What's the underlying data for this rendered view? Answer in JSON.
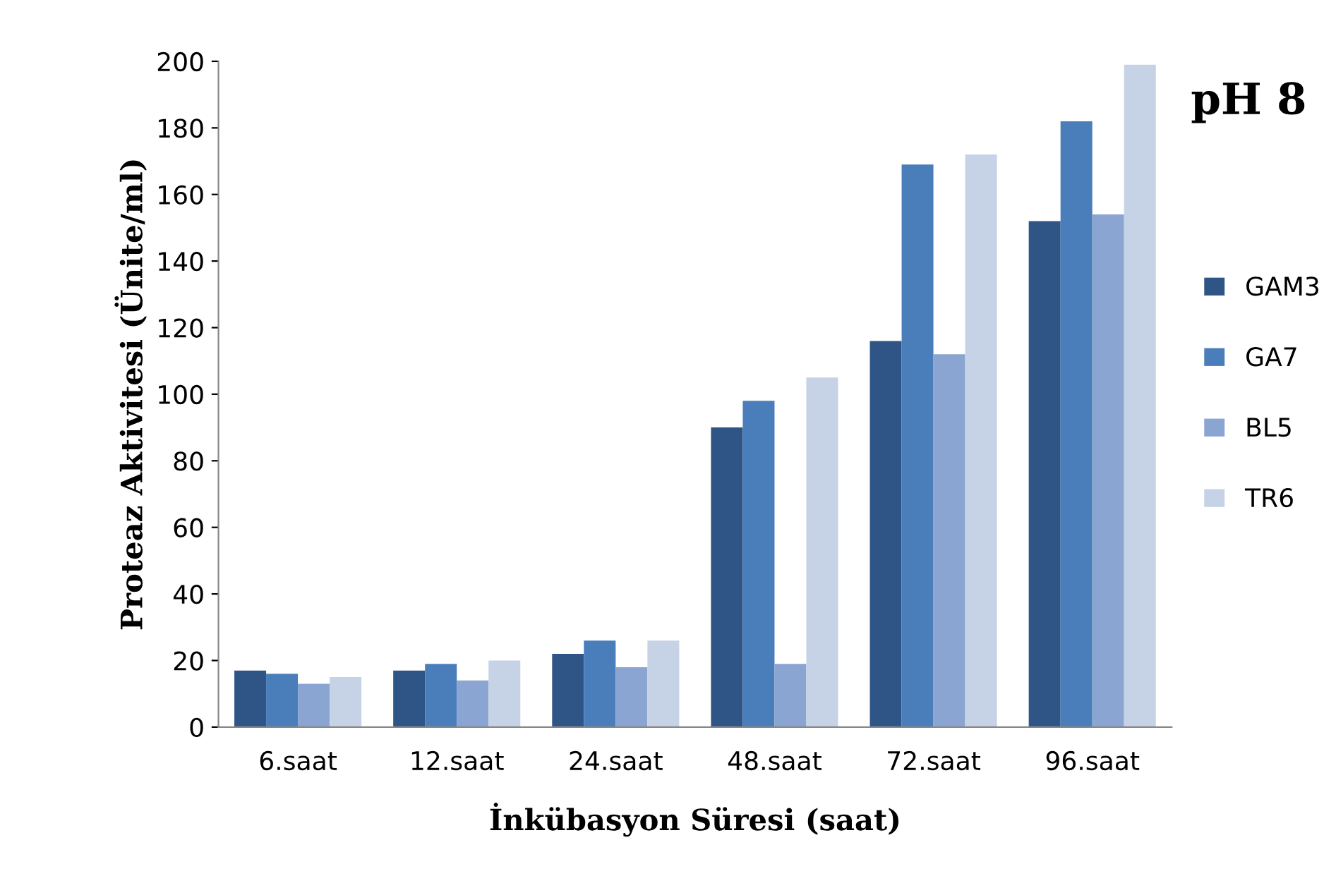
{
  "chart_data": {
    "type": "bar",
    "annotations": [
      "pH 8"
    ],
    "xlabel": "İnkübasyon Süresi (saat)",
    "ylabel": "Proteaz Aktivitesi (Ünite/ml)",
    "categories": [
      "6.saat",
      "12.saat",
      "24.saat",
      "48.saat",
      "72.saat",
      "96.saat"
    ],
    "series": [
      {
        "name": "GAM3",
        "color": "#2f5486",
        "values": [
          17,
          17,
          22,
          90,
          116,
          152
        ]
      },
      {
        "name": "GA7",
        "color": "#4a7ebb",
        "values": [
          16,
          19,
          26,
          98,
          169,
          182
        ]
      },
      {
        "name": "BL5",
        "color": "#8aa5d2",
        "values": [
          13,
          14,
          18,
          19,
          112,
          154
        ]
      },
      {
        "name": "TR6",
        "color": "#c6d2e6",
        "values": [
          15,
          20,
          26,
          105,
          172,
          199
        ]
      }
    ],
    "ylim": [
      0,
      200
    ],
    "yticks": [
      0,
      20,
      40,
      60,
      80,
      100,
      120,
      140,
      160,
      180,
      200
    ],
    "legend": "right",
    "grid": false
  }
}
